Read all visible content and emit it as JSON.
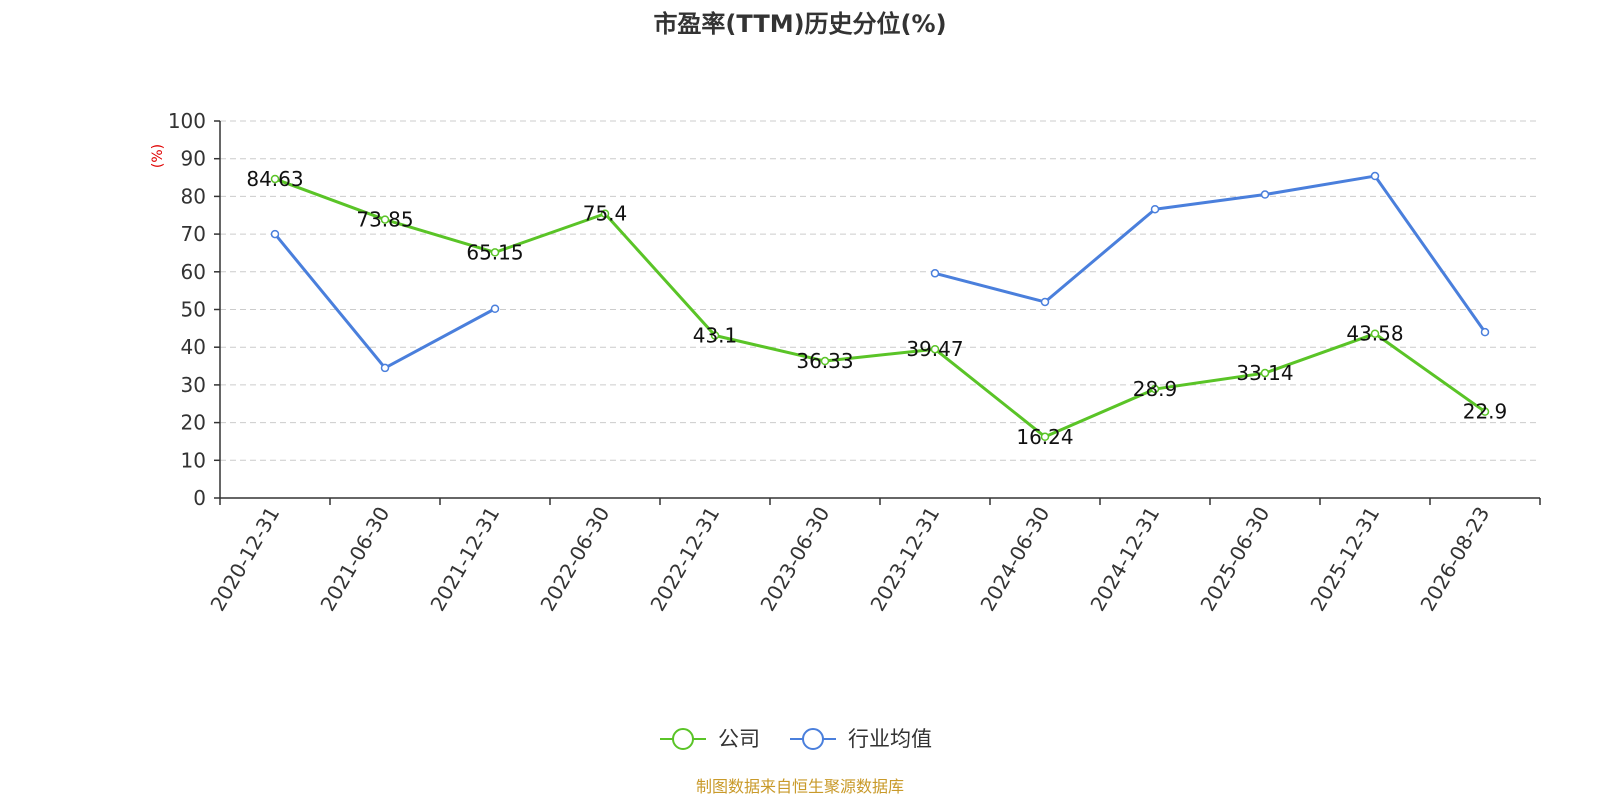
{
  "title": "市盈率(TTM)历史分位(%)",
  "y_unit": "(%)",
  "source": "制图数据来自恒生聚源数据库",
  "colors": {
    "company": "#5ac427",
    "industry": "#4a7fdc",
    "unit": "#e00000",
    "source": "#c99a2a",
    "grid": "#cccccc",
    "axis": "#333333"
  },
  "chart_data": {
    "type": "line",
    "title": "市盈率(TTM)历史分位(%)",
    "ylabel": "(%)",
    "xlabel": "",
    "ylim": [
      0,
      100
    ],
    "yticks": [
      0,
      10,
      20,
      30,
      40,
      50,
      60,
      70,
      80,
      90,
      100
    ],
    "grid": true,
    "legend_position": "bottom",
    "categories": [
      "2020-12-31",
      "2021-06-30",
      "2021-12-31",
      "2022-06-30",
      "2022-12-31",
      "2023-06-30",
      "2023-12-31",
      "2024-06-30",
      "2024-12-31",
      "2025-06-30",
      "2025-12-31",
      "2026-08-23"
    ],
    "series": [
      {
        "name": "公司",
        "values": [
          84.63,
          73.85,
          65.15,
          75.4,
          43.1,
          36.33,
          39.47,
          16.24,
          28.9,
          33.14,
          43.58,
          22.9
        ],
        "labels": [
          "84.63",
          "73.85",
          "65.15",
          "75.4",
          "43.1",
          "36.33",
          "39.47",
          "16.24",
          "28.9",
          "33.14",
          "43.58",
          "22.9"
        ]
      },
      {
        "name": "行业均值",
        "values": [
          70,
          34.5,
          50.2,
          null,
          null,
          null,
          59.6,
          52,
          76.6,
          80.5,
          85.4,
          44
        ]
      }
    ]
  }
}
